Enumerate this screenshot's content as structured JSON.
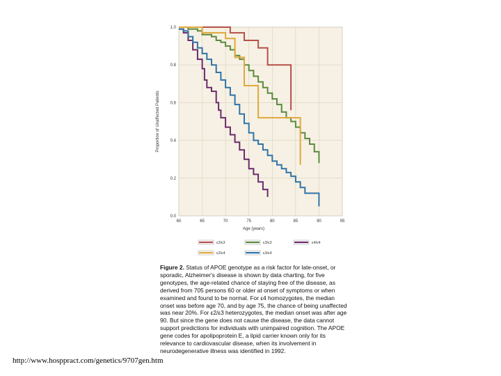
{
  "chart_data": {
    "type": "line",
    "step": true,
    "xlabel": "Age (years)",
    "ylabel": "Proportion of Unaffected Patients",
    "xlim": [
      60,
      95
    ],
    "ylim": [
      0,
      1.0
    ],
    "x_ticks": [
      "60",
      "65",
      "70",
      "75",
      "80",
      "85",
      "90",
      "95"
    ],
    "y_ticks": [
      "0.0",
      "0.2",
      "0.4",
      "0.6",
      "0.8",
      "1.0"
    ],
    "grid": true,
    "background": "#f6f1e4",
    "legend_position": "bottom",
    "series": [
      {
        "name": "ε2/ε3",
        "color": "#b5504a",
        "x": [
          60,
          66,
          71,
          74,
          77,
          79,
          84
        ],
        "y": [
          1.0,
          1.0,
          0.97,
          0.93,
          0.89,
          0.8,
          0.56
        ]
      },
      {
        "name": "ε3/ε3",
        "color": "#5b8a3e",
        "x": [
          60,
          62,
          64,
          65,
          67,
          68,
          69,
          70,
          71,
          72,
          73,
          74,
          75,
          76,
          77,
          78,
          79,
          80,
          81,
          82,
          83,
          84,
          85,
          86,
          87,
          88,
          89,
          90
        ],
        "y": [
          1.0,
          0.99,
          0.98,
          0.96,
          0.95,
          0.93,
          0.92,
          0.9,
          0.88,
          0.85,
          0.83,
          0.8,
          0.77,
          0.74,
          0.71,
          0.68,
          0.65,
          0.62,
          0.59,
          0.55,
          0.52,
          0.5,
          0.47,
          0.44,
          0.41,
          0.38,
          0.34,
          0.28
        ]
      },
      {
        "name": "ε4/ε4",
        "color": "#6b2a6b",
        "x": [
          60,
          61,
          62,
          63,
          64,
          65,
          65.5,
          66,
          67,
          68,
          68.5,
          69,
          70,
          71,
          72,
          73,
          74,
          75,
          76,
          77,
          78,
          79
        ],
        "y": [
          0.99,
          0.97,
          0.93,
          0.88,
          0.83,
          0.78,
          0.72,
          0.68,
          0.66,
          0.6,
          0.56,
          0.52,
          0.47,
          0.43,
          0.39,
          0.35,
          0.3,
          0.25,
          0.22,
          0.18,
          0.14,
          0.1
        ]
      },
      {
        "name": "ε2/ε4",
        "color": "#e0a83a",
        "x": [
          60,
          65,
          70,
          72,
          74,
          77,
          86
        ],
        "y": [
          1.0,
          0.97,
          0.94,
          0.84,
          0.69,
          0.52,
          0.27
        ]
      },
      {
        "name": "ε3/ε4",
        "color": "#2f74a8",
        "x": [
          60,
          61,
          62,
          63,
          64,
          65,
          66,
          67,
          68,
          69,
          70,
          71,
          72,
          73,
          74,
          75,
          76,
          77,
          78,
          79,
          80,
          81,
          82,
          83,
          84,
          85,
          86,
          87,
          90
        ],
        "y": [
          0.99,
          0.98,
          0.95,
          0.92,
          0.89,
          0.86,
          0.83,
          0.8,
          0.76,
          0.72,
          0.68,
          0.64,
          0.59,
          0.54,
          0.49,
          0.44,
          0.4,
          0.38,
          0.35,
          0.32,
          0.29,
          0.27,
          0.25,
          0.23,
          0.21,
          0.18,
          0.15,
          0.12,
          0.05
        ]
      }
    ],
    "legend_order": [
      "ε2/ε3",
      "ε3/ε3",
      "ε4/ε4",
      "ε2/ε4",
      "ε3/ε4"
    ]
  },
  "caption": {
    "label": "Figure 2.",
    "text": " Status of APOE genotype as a risk factor for late-onset, or sporadic, Alzheimer's disease is shown by data charting, for five genotypes, the age-related chance of staying free of the disease, as derived from 705 persons 60 or older at onset of symptoms or when examined and found to be normal. For ε4 homozygotes, the median onset was before age 70, and by age 75, the chance of being unaffected was near 20%. For ε2/ε3 heterozygotes, the median onset was after age 90. But since the gene does not cause the disease, the data cannot support predictions for individuals with unimpaired cognition. The APOE gene codes for apolipoprotein E, a lipid carrier known only for its relevance to cardiovascular disease, when its involvement in neurodegenerative illness was identified in 1992."
  },
  "source_url": "http://www.hosppract.com/genetics/9707gen.htm"
}
